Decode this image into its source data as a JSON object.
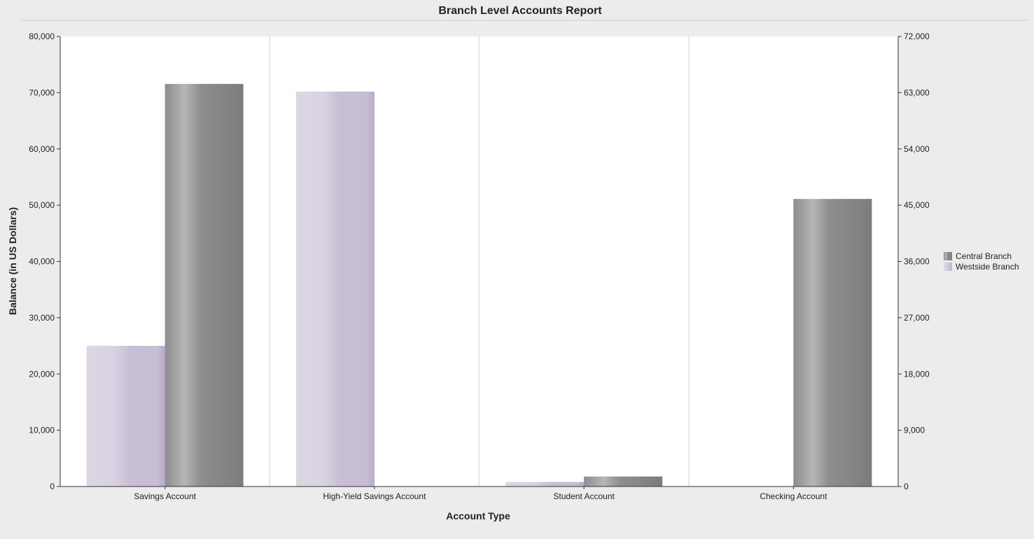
{
  "chart_data": {
    "type": "bar",
    "title": "Branch Level Accounts Report",
    "xlabel": "Account Type",
    "ylabel": "Balance (in US Dollars)",
    "categories": [
      "Savings Account",
      "High-Yield Savings Account",
      "Student Account",
      "Checking Account"
    ],
    "series": [
      {
        "name": "Westside Branch",
        "axis": "left",
        "values": [
          25000,
          70200,
          800,
          0
        ]
      },
      {
        "name": "Central Branch",
        "axis": "right",
        "values": [
          64400,
          0,
          1600,
          46000
        ]
      }
    ],
    "ylim": [
      0,
      80000
    ],
    "y_ticks": [
      "0",
      "10,000",
      "20,000",
      "30,000",
      "40,000",
      "50,000",
      "60,000",
      "70,000",
      "80,000"
    ],
    "y2lim": [
      0,
      72000
    ],
    "y2_ticks": [
      "0",
      "9,000",
      "18,000",
      "27,000",
      "36,000",
      "45,000",
      "54,000",
      "63,000",
      "72,000"
    ],
    "legend": {
      "position": "right",
      "entries": [
        "Central Branch",
        "Westside Branch"
      ]
    },
    "grid": false,
    "colors": {
      "Westside Branch": "#cbc1d6",
      "Central Branch": "#8a8a8a"
    }
  }
}
